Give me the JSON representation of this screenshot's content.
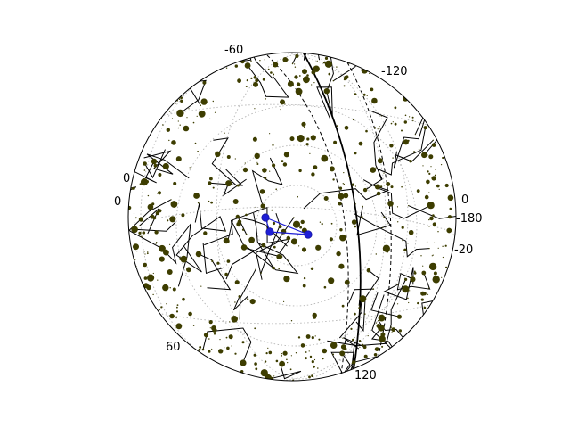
{
  "chart_data": {
    "type": "scatter",
    "projection": "stereographic sky map (orthographic-looking disc)",
    "title": "",
    "grid": true,
    "ra_tick_labels": [
      "-60",
      "-120",
      "0",
      "-180",
      "60",
      "120"
    ],
    "dec_tick_labels": [
      "0",
      "0",
      "-20"
    ],
    "series": [
      {
        "marker_color": "#3d3d00",
        "stars_ra_dec_mag": [
          [
            -95,
            68,
            2.1
          ],
          [
            -80,
            72,
            3.4
          ],
          [
            -60,
            78,
            2.8
          ],
          [
            -40,
            80,
            3.9
          ],
          [
            -20,
            75,
            4.2
          ],
          [
            -110,
            55,
            3.1
          ],
          [
            -130,
            48,
            2.5
          ],
          [
            -150,
            42,
            3.7
          ],
          [
            -165,
            35,
            4.1
          ],
          [
            -175,
            20,
            2.9
          ],
          [
            -60,
            55,
            4.5
          ],
          [
            -45,
            48,
            3.3
          ],
          [
            -30,
            40,
            2.2
          ],
          [
            -15,
            35,
            4.7
          ],
          [
            0,
            30,
            3.6
          ],
          [
            15,
            25,
            2.7
          ],
          [
            30,
            20,
            4.3
          ],
          [
            45,
            15,
            3.0
          ],
          [
            60,
            10,
            2.4
          ],
          [
            75,
            5,
            4.8
          ],
          [
            90,
            0,
            3.2
          ],
          [
            105,
            -5,
            2.6
          ],
          [
            120,
            -10,
            3.8
          ],
          [
            135,
            -15,
            4.4
          ],
          [
            150,
            -20,
            2.3
          ],
          [
            165,
            -15,
            3.5
          ],
          [
            -70,
            30,
            4.0
          ],
          [
            -85,
            20,
            2.0
          ],
          [
            -100,
            10,
            3.9
          ],
          [
            -115,
            0,
            4.6
          ],
          [
            -130,
            -10,
            2.8
          ],
          [
            -145,
            -20,
            3.4
          ],
          [
            -160,
            -30,
            4.2
          ],
          [
            20,
            60,
            3.1
          ],
          [
            40,
            50,
            2.9
          ],
          [
            55,
            40,
            4.4
          ],
          [
            70,
            30,
            3.7
          ],
          [
            85,
            20,
            2.5
          ],
          [
            100,
            40,
            4.1
          ],
          [
            115,
            30,
            3.3
          ],
          [
            130,
            20,
            2.7
          ],
          [
            145,
            10,
            4.9
          ],
          [
            160,
            0,
            3.6
          ],
          [
            -20,
            10,
            2.2
          ],
          [
            -35,
            0,
            4.0
          ],
          [
            -50,
            -10,
            3.2
          ],
          [
            -65,
            -20,
            2.6
          ],
          [
            10,
            -5,
            4.5
          ],
          [
            25,
            -15,
            3.9
          ],
          [
            40,
            -25,
            2.4
          ]
        ],
        "asterism_color": "#000000"
      },
      {
        "name": "",
        "marker_color": "#1f1fd6",
        "points_xy_px_note": "highlighted triangle asterism near center",
        "triangle": [
          [
            298,
            244
          ],
          [
            346,
            263
          ],
          [
            303,
            260
          ]
        ]
      }
    ]
  }
}
